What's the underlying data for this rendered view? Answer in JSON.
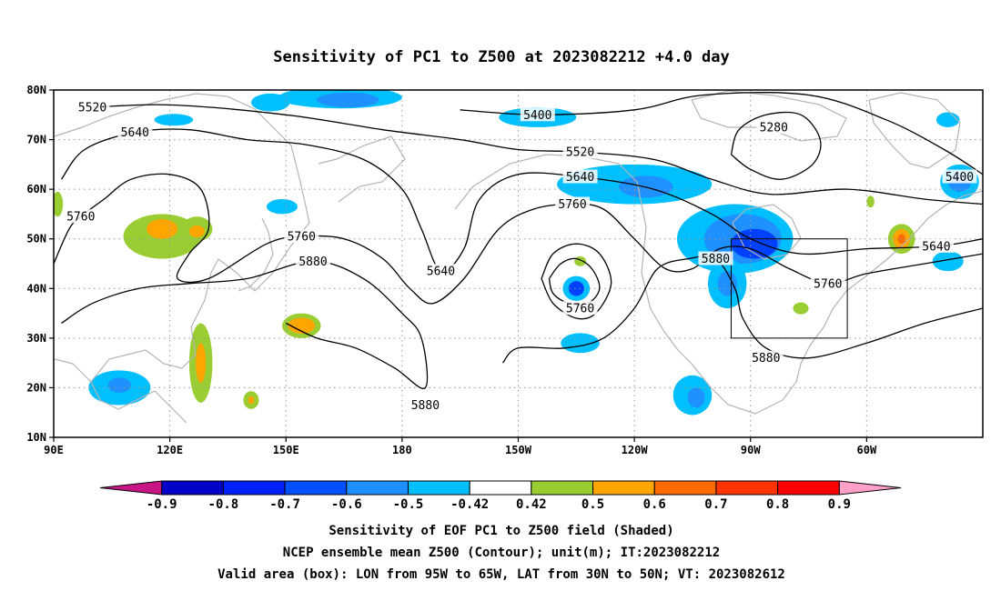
{
  "title": "Sensitivity of PC1 to Z500 at 2023082212 +4.0 day",
  "footer": {
    "line1": "Sensitivity of EOF PC1 to Z500 field (Shaded)",
    "line2": "NCEP ensemble mean Z500 (Contour); unit(m); IT:2023082212",
    "line3": "Valid area (box): LON from 95W to 65W, LAT from 30N to 50N; VT: 2023082612"
  },
  "map": {
    "lon_range": [
      90,
      330
    ],
    "lat_range": [
      10,
      80
    ],
    "lon_ticks": [
      {
        "lon": 90,
        "label": "90E"
      },
      {
        "lon": 120,
        "label": "120E"
      },
      {
        "lon": 150,
        "label": "150E"
      },
      {
        "lon": 180,
        "label": "180"
      },
      {
        "lon": 210,
        "label": "150W"
      },
      {
        "lon": 240,
        "label": "120W"
      },
      {
        "lon": 270,
        "label": "90W"
      },
      {
        "lon": 300,
        "label": "60W"
      }
    ],
    "lat_ticks": [
      {
        "lat": 10,
        "label": "10N"
      },
      {
        "lat": 20,
        "label": "20N"
      },
      {
        "lat": 30,
        "label": "30N"
      },
      {
        "lat": 40,
        "label": "40N"
      },
      {
        "lat": 50,
        "label": "50N"
      },
      {
        "lat": 60,
        "label": "60N"
      },
      {
        "lat": 70,
        "label": "70N"
      },
      {
        "lat": 80,
        "label": "80N"
      }
    ],
    "valid_box": {
      "lon_min": 265,
      "lon_max": 295,
      "lat_min": 30,
      "lat_max": 50
    },
    "contour_labels": [
      {
        "text": "5520",
        "lon": 100,
        "lat": 76.5
      },
      {
        "text": "5640",
        "lon": 111,
        "lat": 71.5
      },
      {
        "text": "5760",
        "lon": 97,
        "lat": 54.5
      },
      {
        "text": "5760",
        "lon": 154,
        "lat": 50.5
      },
      {
        "text": "5880",
        "lon": 157,
        "lat": 45.5
      },
      {
        "text": "5400",
        "lon": 215,
        "lat": 75
      },
      {
        "text": "5520",
        "lon": 226,
        "lat": 67.5
      },
      {
        "text": "5640",
        "lon": 226,
        "lat": 62.5
      },
      {
        "text": "5760",
        "lon": 224,
        "lat": 57
      },
      {
        "text": "5640",
        "lon": 190,
        "lat": 43.5
      },
      {
        "text": "5760",
        "lon": 226,
        "lat": 36
      },
      {
        "text": "5280",
        "lon": 276,
        "lat": 72.5
      },
      {
        "text": "5400",
        "lon": 324,
        "lat": 62.5
      },
      {
        "text": "5640",
        "lon": 318,
        "lat": 48.5
      },
      {
        "text": "5880",
        "lon": 261,
        "lat": 46
      },
      {
        "text": "5760",
        "lon": 290,
        "lat": 41
      },
      {
        "text": "5880",
        "lon": 274,
        "lat": 26
      },
      {
        "text": "5880",
        "lon": 186,
        "lat": 16.5
      }
    ],
    "contours": [
      {
        "value": 5280,
        "points": [
          [
            265,
            67
          ],
          [
            270,
            64
          ],
          [
            278,
            62
          ],
          [
            286,
            65
          ],
          [
            288,
            70
          ],
          [
            283,
            75
          ],
          [
            274,
            75
          ],
          [
            267,
            72
          ],
          [
            265,
            67
          ]
        ]
      },
      {
        "value": 5400,
        "points": [
          [
            195,
            76
          ],
          [
            215,
            75
          ],
          [
            240,
            76
          ],
          [
            258,
            79
          ],
          [
            285,
            79
          ],
          [
            305,
            74
          ],
          [
            320,
            68
          ],
          [
            330,
            63
          ]
        ]
      },
      {
        "value": 5520,
        "points": [
          [
            100,
            76.5
          ],
          [
            120,
            77
          ],
          [
            150,
            75
          ],
          [
            175,
            72
          ],
          [
            195,
            70
          ],
          [
            210,
            68
          ],
          [
            226,
            67.5
          ],
          [
            245,
            66
          ],
          [
            260,
            62
          ],
          [
            275,
            59
          ],
          [
            295,
            60
          ],
          [
            315,
            58
          ],
          [
            330,
            57
          ]
        ]
      },
      {
        "value": 5640,
        "points": [
          [
            92,
            62
          ],
          [
            98,
            68
          ],
          [
            111,
            71.5
          ],
          [
            125,
            72
          ],
          [
            140,
            70
          ],
          [
            155,
            69
          ],
          [
            170,
            66
          ],
          [
            180,
            60
          ],
          [
            185,
            52
          ],
          [
            190,
            43.5
          ],
          [
            196,
            48
          ],
          [
            200,
            58
          ],
          [
            210,
            63
          ],
          [
            226,
            62.5
          ],
          [
            245,
            60
          ],
          [
            260,
            55
          ],
          [
            270,
            50
          ],
          [
            283,
            47
          ],
          [
            300,
            48
          ],
          [
            318,
            48.5
          ],
          [
            330,
            50
          ]
        ]
      },
      {
        "value": 5760,
        "points": [
          [
            90,
            45
          ],
          [
            94,
            52
          ],
          [
            97,
            54.5
          ],
          [
            103,
            58
          ],
          [
            110,
            62
          ],
          [
            120,
            63
          ],
          [
            128,
            60
          ],
          [
            130,
            52
          ],
          [
            125,
            47
          ],
          [
            122,
            42
          ],
          [
            130,
            42
          ],
          [
            145,
            49
          ],
          [
            154,
            50.5
          ],
          [
            165,
            50
          ],
          [
            175,
            46
          ],
          [
            182,
            40
          ],
          [
            188,
            37
          ],
          [
            196,
            42
          ],
          [
            205,
            52
          ],
          [
            214,
            56
          ],
          [
            224,
            57
          ],
          [
            232,
            56
          ],
          [
            240,
            50
          ],
          [
            248,
            44
          ],
          [
            255,
            44
          ],
          [
            262,
            48
          ],
          [
            270,
            48
          ],
          [
            280,
            44
          ],
          [
            290,
            41
          ],
          [
            300,
            43
          ],
          [
            315,
            45
          ],
          [
            330,
            47
          ]
        ]
      },
      {
        "value": 5760,
        "points": [
          [
            216,
            42
          ],
          [
            219,
            47
          ],
          [
            225,
            49
          ],
          [
            231,
            47
          ],
          [
            234,
            41
          ],
          [
            230,
            35
          ],
          [
            225,
            34
          ],
          [
            219,
            37
          ],
          [
            216,
            42
          ]
        ]
      },
      {
        "value": 5880,
        "points": [
          [
            92,
            33
          ],
          [
            100,
            37
          ],
          [
            112,
            40
          ],
          [
            125,
            41
          ],
          [
            140,
            42
          ],
          [
            157,
            45.5
          ],
          [
            170,
            42
          ],
          [
            180,
            35
          ],
          [
            185,
            30
          ],
          [
            186,
            20
          ],
          [
            178,
            24
          ],
          [
            168,
            28
          ],
          [
            158,
            30
          ],
          [
            150,
            33
          ]
        ]
      },
      {
        "value": 5880,
        "points": [
          [
            218,
            42
          ],
          [
            221,
            45
          ],
          [
            225,
            46
          ],
          [
            229,
            44
          ],
          [
            231,
            40
          ],
          [
            228,
            37
          ],
          [
            223,
            37
          ],
          [
            219,
            39
          ],
          [
            218,
            42
          ]
        ]
      },
      {
        "value": 5880,
        "points": [
          [
            206,
            25
          ],
          [
            210,
            28
          ],
          [
            222,
            28
          ],
          [
            232,
            30
          ],
          [
            240,
            36
          ],
          [
            246,
            44
          ],
          [
            254,
            46
          ],
          [
            261,
            46
          ],
          [
            266,
            40
          ],
          [
            268,
            34
          ],
          [
            274,
            28
          ],
          [
            285,
            26
          ],
          [
            300,
            29
          ],
          [
            315,
            33
          ],
          [
            330,
            36
          ]
        ]
      }
    ],
    "shading": [
      {
        "bin": 0.5,
        "color": "#9ACD32",
        "lon": 118,
        "lat": 50.5,
        "rx": 10,
        "ry": 4.5
      },
      {
        "bin": 0.6,
        "color": "#FFA500",
        "lon": 118,
        "lat": 52,
        "rx": 4,
        "ry": 2
      },
      {
        "bin": 0.5,
        "color": "#9ACD32",
        "lon": 127,
        "lat": 52,
        "rx": 4,
        "ry": 2.5
      },
      {
        "bin": 0.6,
        "color": "#FFA500",
        "lon": 127,
        "lat": 51.5,
        "rx": 2,
        "ry": 1.2
      },
      {
        "bin": 0.5,
        "color": "#9ACD32",
        "lon": 154,
        "lat": 32.5,
        "rx": 5,
        "ry": 2.5
      },
      {
        "bin": 0.6,
        "color": "#FFA500",
        "lon": 154,
        "lat": 32.5,
        "rx": 3.5,
        "ry": 1.6
      },
      {
        "bin": 0.5,
        "color": "#9ACD32",
        "lon": 128,
        "lat": 25,
        "rx": 3,
        "ry": 8
      },
      {
        "bin": 0.6,
        "color": "#FFA500",
        "lon": 128,
        "lat": 25,
        "rx": 1.3,
        "ry": 4
      },
      {
        "bin": 0.5,
        "color": "#9ACD32",
        "lon": 141,
        "lat": 17.5,
        "rx": 2,
        "ry": 1.8
      },
      {
        "bin": 0.6,
        "color": "#FFA500",
        "lon": 141,
        "lat": 17.5,
        "rx": 0.8,
        "ry": 0.8
      },
      {
        "bin": 0.5,
        "color": "#9ACD32",
        "lon": 91,
        "lat": 57,
        "rx": 1.4,
        "ry": 2.5
      },
      {
        "bin": -0.5,
        "color": "#00BFFF",
        "lon": 107,
        "lat": 20,
        "rx": 8,
        "ry": 3.5
      },
      {
        "bin": -0.6,
        "color": "#1E90FF",
        "lon": 107,
        "lat": 20.5,
        "rx": 3,
        "ry": 1.5
      },
      {
        "bin": -0.5,
        "color": "#00BFFF",
        "lon": 164,
        "lat": 78.5,
        "rx": 16,
        "ry": 2.2
      },
      {
        "bin": -0.6,
        "color": "#1E90FF",
        "lon": 166,
        "lat": 78,
        "rx": 8,
        "ry": 1.5
      },
      {
        "bin": -0.5,
        "color": "#00BFFF",
        "lon": 121,
        "lat": 74,
        "rx": 5,
        "ry": 1.2
      },
      {
        "bin": -0.5,
        "color": "#00BFFF",
        "lon": 146,
        "lat": 77.5,
        "rx": 5,
        "ry": 1.8
      },
      {
        "bin": -0.5,
        "color": "#00BFFF",
        "lon": 149,
        "lat": 56.5,
        "rx": 4,
        "ry": 1.5
      },
      {
        "bin": -0.5,
        "color": "#00BFFF",
        "lon": 215,
        "lat": 74.5,
        "rx": 10,
        "ry": 2
      },
      {
        "bin": -0.5,
        "color": "#00BFFF",
        "lon": 240,
        "lat": 61,
        "rx": 20,
        "ry": 4
      },
      {
        "bin": -0.6,
        "color": "#1E90FF",
        "lon": 243,
        "lat": 60.5,
        "rx": 7,
        "ry": 2.2
      },
      {
        "bin": -0.5,
        "color": "#00BFFF",
        "lon": 266,
        "lat": 50,
        "rx": 15,
        "ry": 7
      },
      {
        "bin": -0.6,
        "color": "#1E90FF",
        "lon": 268,
        "lat": 50,
        "rx": 10,
        "ry": 5
      },
      {
        "bin": -0.7,
        "color": "#0040FF",
        "lon": 271,
        "lat": 49,
        "rx": 6,
        "ry": 3
      },
      {
        "bin": -0.5,
        "color": "#00BFFF",
        "lon": 264,
        "lat": 41,
        "rx": 5,
        "ry": 5
      },
      {
        "bin": -0.6,
        "color": "#1E90FF",
        "lon": 264,
        "lat": 41,
        "rx": 2.5,
        "ry": 2.5
      },
      {
        "bin": -0.5,
        "color": "#00BFFF",
        "lon": 225,
        "lat": 40,
        "rx": 3.5,
        "ry": 2.5
      },
      {
        "bin": -0.7,
        "color": "#0040FF",
        "lon": 225,
        "lat": 40,
        "rx": 2,
        "ry": 1.5
      },
      {
        "bin": -0.5,
        "color": "#00BFFF",
        "lon": 226,
        "lat": 29,
        "rx": 5,
        "ry": 2
      },
      {
        "bin": -0.5,
        "color": "#00BFFF",
        "lon": 255,
        "lat": 18.5,
        "rx": 5,
        "ry": 4
      },
      {
        "bin": -0.6,
        "color": "#1E90FF",
        "lon": 256,
        "lat": 18,
        "rx": 2.2,
        "ry": 2
      },
      {
        "bin": -0.5,
        "color": "#00BFFF",
        "lon": 324,
        "lat": 61.5,
        "rx": 5,
        "ry": 3.5
      },
      {
        "bin": -0.6,
        "color": "#1E90FF",
        "lon": 324,
        "lat": 61.5,
        "rx": 3,
        "ry": 2
      },
      {
        "bin": -0.5,
        "color": "#00BFFF",
        "lon": 321,
        "lat": 45.5,
        "rx": 4,
        "ry": 2
      },
      {
        "bin": -0.5,
        "color": "#00BFFF",
        "lon": 321,
        "lat": 74,
        "rx": 3,
        "ry": 1.5
      },
      {
        "bin": 0.5,
        "color": "#9ACD32",
        "lon": 309,
        "lat": 50,
        "rx": 3.5,
        "ry": 3
      },
      {
        "bin": 0.6,
        "color": "#FFA500",
        "lon": 309,
        "lat": 50,
        "rx": 2.2,
        "ry": 2
      },
      {
        "bin": 0.7,
        "color": "#FF6A00",
        "lon": 309,
        "lat": 50,
        "rx": 1,
        "ry": 1
      },
      {
        "bin": 0.5,
        "color": "#9ACD32",
        "lon": 301,
        "lat": 57.5,
        "rx": 1,
        "ry": 1.2
      },
      {
        "bin": 0.5,
        "color": "#9ACD32",
        "lon": 283,
        "lat": 36,
        "rx": 2,
        "ry": 1.2
      },
      {
        "bin": 0.5,
        "color": "#9ACD32",
        "lon": 226,
        "lat": 45.5,
        "rx": 1.5,
        "ry": 1
      }
    ]
  },
  "colorbar": {
    "bins": [
      {
        "color": "#C71585"
      },
      {
        "color": "#0000C8"
      },
      {
        "color": "#0020FF"
      },
      {
        "color": "#0050FF"
      },
      {
        "color": "#1E90FF"
      },
      {
        "color": "#00BFFF"
      },
      {
        "color": "#FFFFFF"
      },
      {
        "color": "#9ACD32"
      },
      {
        "color": "#FFA500"
      },
      {
        "color": "#FF6A00"
      },
      {
        "color": "#FF3300"
      },
      {
        "color": "#FF0000"
      },
      {
        "color": "#FFA0C8"
      }
    ],
    "labels": [
      "-0.9",
      "-0.8",
      "-0.7",
      "-0.6",
      "-0.5",
      "-0.42",
      "0.42",
      "0.5",
      "0.6",
      "0.7",
      "0.8",
      "0.9"
    ]
  }
}
